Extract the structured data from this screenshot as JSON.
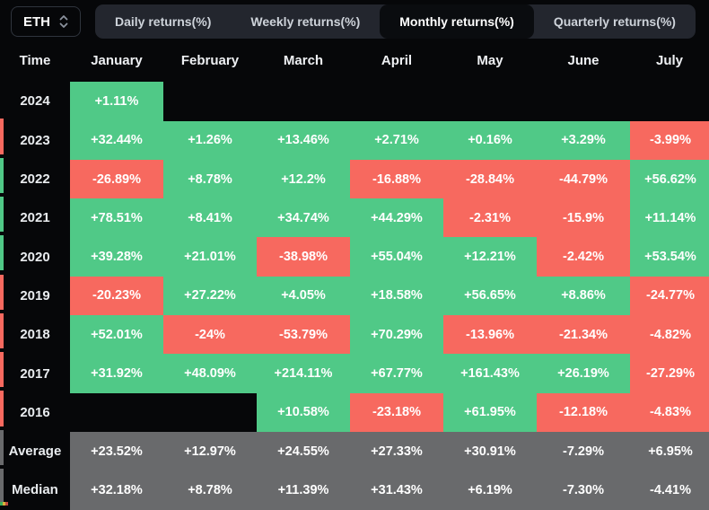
{
  "toolbar": {
    "symbol_select": {
      "value": "ETH"
    },
    "tabs": [
      {
        "label": "Daily returns(%)",
        "selected": false
      },
      {
        "label": "Weekly returns(%)",
        "selected": false
      },
      {
        "label": "Monthly returns(%)",
        "selected": true
      },
      {
        "label": "Quarterly returns(%)",
        "selected": false
      }
    ]
  },
  "colors": {
    "green": "#50c987",
    "red": "#f7695f",
    "gray": "#696a6c"
  },
  "table": {
    "time_header": "Time",
    "month_headers": [
      "January",
      "February",
      "March",
      "April",
      "May",
      "June",
      "July"
    ],
    "rows": [
      {
        "label": "2024",
        "edge": null,
        "cells": [
          {
            "text": "+1.11%",
            "color": "green"
          },
          null,
          null,
          null,
          null,
          null,
          null
        ]
      },
      {
        "label": "2023",
        "edge": "red",
        "cells": [
          {
            "text": "+32.44%",
            "color": "green"
          },
          {
            "text": "+1.26%",
            "color": "green"
          },
          {
            "text": "+13.46%",
            "color": "green"
          },
          {
            "text": "+2.71%",
            "color": "green"
          },
          {
            "text": "+0.16%",
            "color": "green"
          },
          {
            "text": "+3.29%",
            "color": "green"
          },
          {
            "text": "-3.99%",
            "color": "red"
          }
        ]
      },
      {
        "label": "2022",
        "edge": "green",
        "cells": [
          {
            "text": "-26.89%",
            "color": "red"
          },
          {
            "text": "+8.78%",
            "color": "green"
          },
          {
            "text": "+12.2%",
            "color": "green"
          },
          {
            "text": "-16.88%",
            "color": "red"
          },
          {
            "text": "-28.84%",
            "color": "red"
          },
          {
            "text": "-44.79%",
            "color": "red"
          },
          {
            "text": "+56.62%",
            "color": "green"
          }
        ]
      },
      {
        "label": "2021",
        "edge": "green",
        "cells": [
          {
            "text": "+78.51%",
            "color": "green"
          },
          {
            "text": "+8.41%",
            "color": "green"
          },
          {
            "text": "+34.74%",
            "color": "green"
          },
          {
            "text": "+44.29%",
            "color": "green"
          },
          {
            "text": "-2.31%",
            "color": "red"
          },
          {
            "text": "-15.9%",
            "color": "red"
          },
          {
            "text": "+11.14%",
            "color": "green"
          }
        ]
      },
      {
        "label": "2020",
        "edge": "green",
        "cells": [
          {
            "text": "+39.28%",
            "color": "green"
          },
          {
            "text": "+21.01%",
            "color": "green"
          },
          {
            "text": "-38.98%",
            "color": "red"
          },
          {
            "text": "+55.04%",
            "color": "green"
          },
          {
            "text": "+12.21%",
            "color": "green"
          },
          {
            "text": "-2.42%",
            "color": "red"
          },
          {
            "text": "+53.54%",
            "color": "green"
          }
        ]
      },
      {
        "label": "2019",
        "edge": "red",
        "cells": [
          {
            "text": "-20.23%",
            "color": "red"
          },
          {
            "text": "+27.22%",
            "color": "green"
          },
          {
            "text": "+4.05%",
            "color": "green"
          },
          {
            "text": "+18.58%",
            "color": "green"
          },
          {
            "text": "+56.65%",
            "color": "green"
          },
          {
            "text": "+8.86%",
            "color": "green"
          },
          {
            "text": "-24.77%",
            "color": "red"
          }
        ]
      },
      {
        "label": "2018",
        "edge": "red",
        "cells": [
          {
            "text": "+52.01%",
            "color": "green"
          },
          {
            "text": "-24%",
            "color": "red"
          },
          {
            "text": "-53.79%",
            "color": "red"
          },
          {
            "text": "+70.29%",
            "color": "green"
          },
          {
            "text": "-13.96%",
            "color": "red"
          },
          {
            "text": "-21.34%",
            "color": "red"
          },
          {
            "text": "-4.82%",
            "color": "red"
          }
        ]
      },
      {
        "label": "2017",
        "edge": "red",
        "cells": [
          {
            "text": "+31.92%",
            "color": "green"
          },
          {
            "text": "+48.09%",
            "color": "green"
          },
          {
            "text": "+214.11%",
            "color": "green"
          },
          {
            "text": "+67.77%",
            "color": "green"
          },
          {
            "text": "+161.43%",
            "color": "green"
          },
          {
            "text": "+26.19%",
            "color": "green"
          },
          {
            "text": "-27.29%",
            "color": "red"
          }
        ]
      },
      {
        "label": "2016",
        "edge": "red",
        "cells": [
          null,
          null,
          {
            "text": "+10.58%",
            "color": "green"
          },
          {
            "text": "-23.18%",
            "color": "red"
          },
          {
            "text": "+61.95%",
            "color": "green"
          },
          {
            "text": "-12.18%",
            "color": "red"
          },
          {
            "text": "-4.83%",
            "color": "red"
          }
        ]
      },
      {
        "label": "Average",
        "edge": "gray",
        "cells": [
          {
            "text": "+23.52%",
            "color": "gray"
          },
          {
            "text": "+12.97%",
            "color": "gray"
          },
          {
            "text": "+24.55%",
            "color": "gray"
          },
          {
            "text": "+27.33%",
            "color": "gray"
          },
          {
            "text": "+30.91%",
            "color": "gray"
          },
          {
            "text": "-7.29%",
            "color": "gray"
          },
          {
            "text": "+6.95%",
            "color": "gray"
          }
        ]
      },
      {
        "label": "Median",
        "edge": "gray",
        "cells": [
          {
            "text": "+32.18%",
            "color": "gray"
          },
          {
            "text": "+8.78%",
            "color": "gray"
          },
          {
            "text": "+11.39%",
            "color": "gray"
          },
          {
            "text": "+31.43%",
            "color": "gray"
          },
          {
            "text": "+6.19%",
            "color": "gray"
          },
          {
            "text": "-7.30%",
            "color": "gray"
          },
          {
            "text": "-4.41%",
            "color": "gray"
          }
        ]
      }
    ]
  }
}
